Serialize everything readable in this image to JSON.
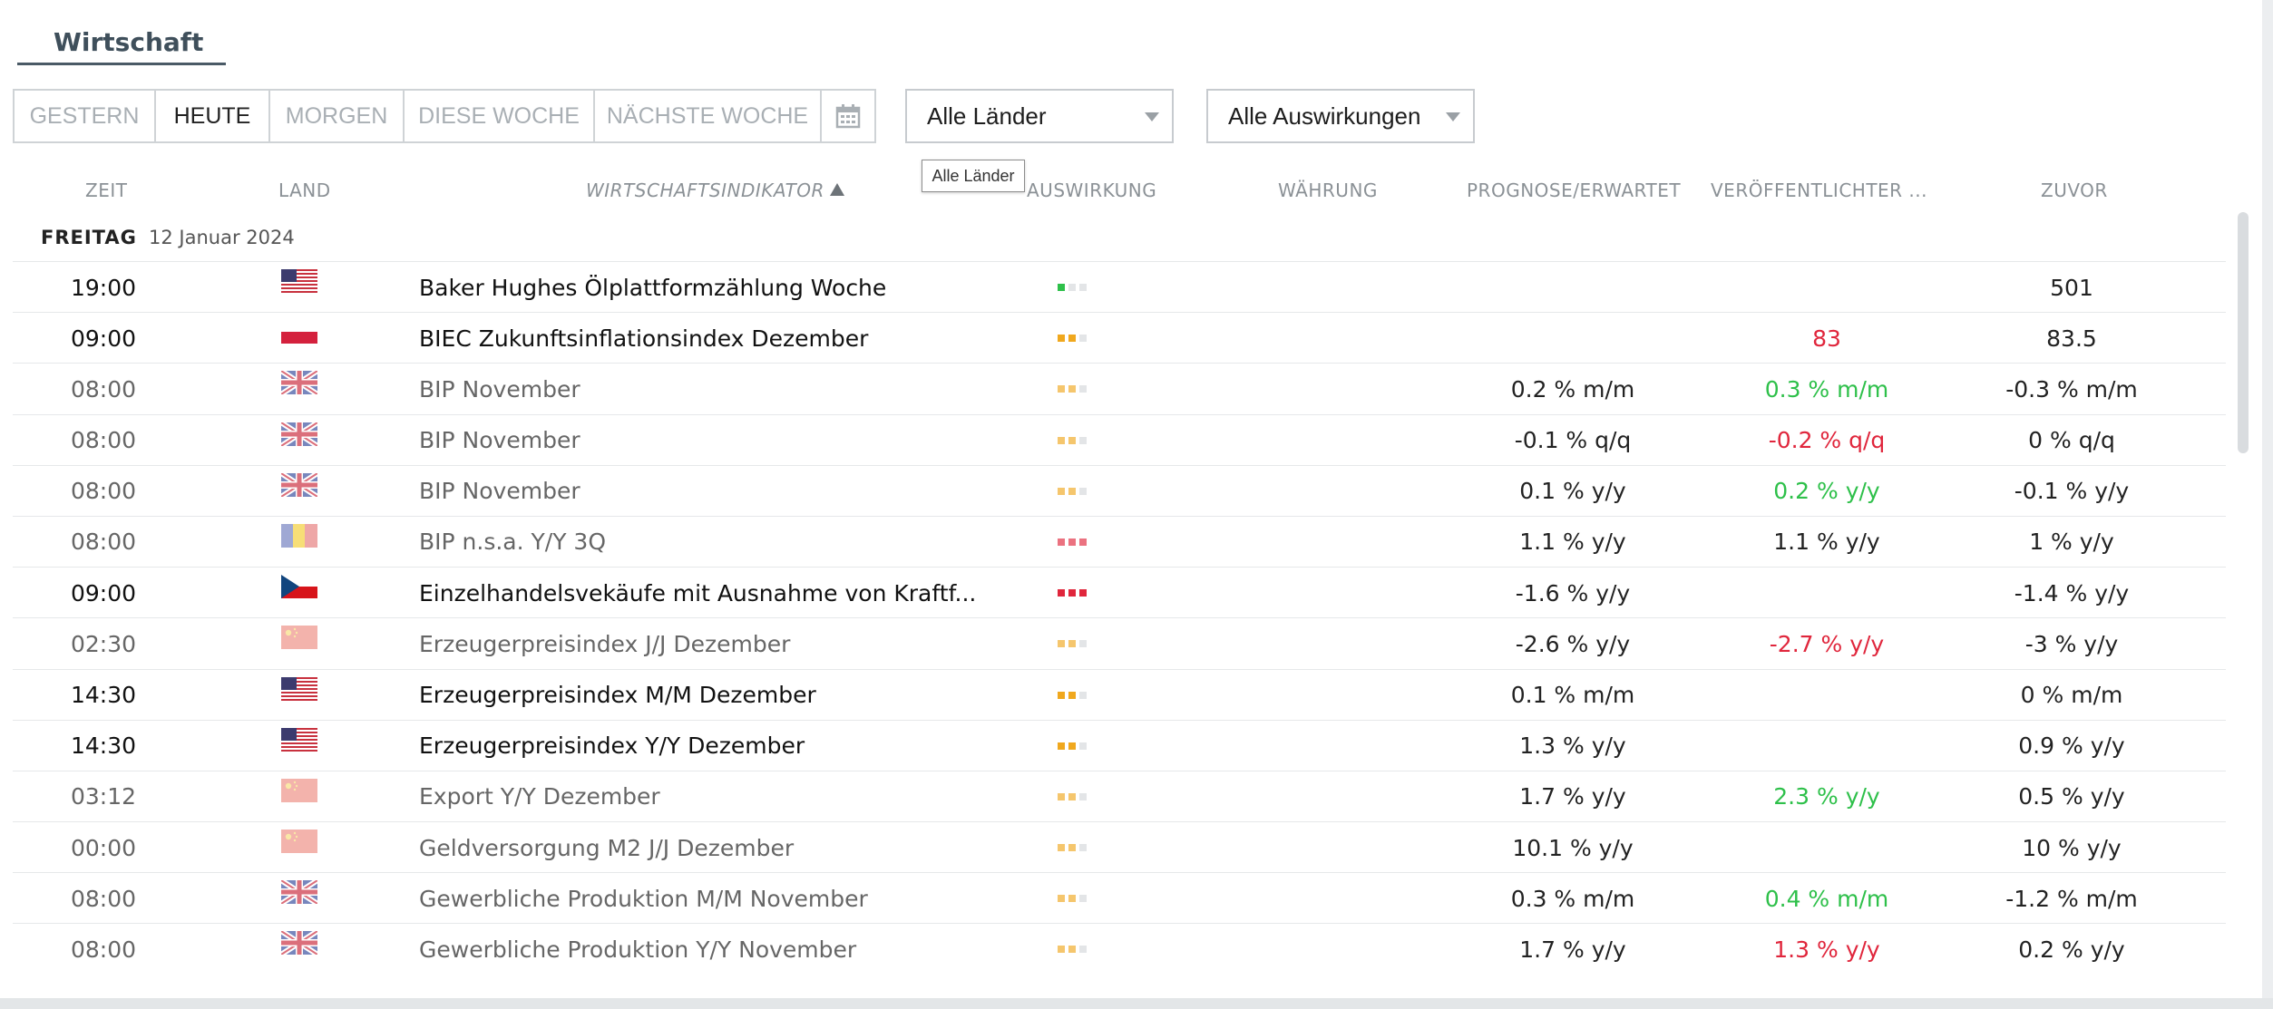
{
  "section_title": "Wirtschaft",
  "periods": [
    {
      "label": "GESTERN",
      "active": false
    },
    {
      "label": "HEUTE",
      "active": true
    },
    {
      "label": "MORGEN",
      "active": false
    },
    {
      "label": "DIESE WOCHE",
      "active": false
    },
    {
      "label": "NÄCHSTE WOCHE",
      "active": false
    }
  ],
  "calendar_icon": "calendar-icon",
  "country_select": {
    "value": "Alle Länder"
  },
  "impact_select": {
    "value": "Alle Auswirkungen"
  },
  "tooltip": "Alle Länder",
  "columns": {
    "time": "ZEIT",
    "country": "LAND",
    "indicator": "WIRTSCHAFTSINDIKATOR",
    "impact": "AUSWIRKUNG",
    "currency": "WÄHRUNG",
    "forecast": "PROGNOSE/ERWARTET",
    "actual": "VERÖFFENTLICHTER ...",
    "previous": "ZUVOR"
  },
  "day": {
    "name": "FREITAG",
    "date": "12 Januar 2024"
  },
  "colors": {
    "positive": "#2ec04a",
    "negative": "#e0263c",
    "impact_low": "#2ec04a",
    "impact_medium": "#f0a81e",
    "impact_high": "#e0263c",
    "impact_off": "#e3e5e7"
  },
  "events": [
    {
      "time": "19:00",
      "flag": "us",
      "indicator": "Baker Hughes Ölplattformzählung Woche",
      "impact": 1,
      "impact_level": "low",
      "forecast": "",
      "actual": "",
      "actual_status": "neutral",
      "previous": "501",
      "important": true
    },
    {
      "time": "09:00",
      "flag": "pl",
      "indicator": "BIEC Zukunftsinflationsindex Dezember",
      "impact": 2,
      "impact_level": "medium",
      "forecast": "",
      "actual": "83",
      "actual_status": "negative",
      "previous": "83.5",
      "important": true
    },
    {
      "time": "08:00",
      "flag": "gb",
      "indicator": "BIP November",
      "impact": 2,
      "impact_level": "medium",
      "forecast": "0.2 % m/m",
      "actual": "0.3 % m/m",
      "actual_status": "positive",
      "previous": "-0.3 % m/m",
      "important": false
    },
    {
      "time": "08:00",
      "flag": "gb",
      "indicator": "BIP November",
      "impact": 2,
      "impact_level": "medium",
      "forecast": "-0.1 % q/q",
      "actual": "-0.2 % q/q",
      "actual_status": "negative",
      "previous": "0 % q/q",
      "important": false
    },
    {
      "time": "08:00",
      "flag": "gb",
      "indicator": "BIP November",
      "impact": 2,
      "impact_level": "medium",
      "forecast": "0.1 % y/y",
      "actual": "0.2 % y/y",
      "actual_status": "positive",
      "previous": "-0.1 % y/y",
      "important": false
    },
    {
      "time": "08:00",
      "flag": "ro",
      "indicator": "BIP n.s.a. Y/Y 3Q",
      "impact": 3,
      "impact_level": "high",
      "forecast": "1.1 % y/y",
      "actual": "1.1 % y/y",
      "actual_status": "neutral",
      "previous": "1 % y/y",
      "important": false
    },
    {
      "time": "09:00",
      "flag": "cz",
      "indicator": "Einzelhandelsvekäufe mit Ausnahme von Kraftf...",
      "impact": 3,
      "impact_level": "high",
      "forecast": "-1.6 % y/y",
      "actual": "",
      "actual_status": "neutral",
      "previous": "-1.4 % y/y",
      "important": true
    },
    {
      "time": "02:30",
      "flag": "cn",
      "indicator": "Erzeugerpreisindex J/J Dezember",
      "impact": 2,
      "impact_level": "medium",
      "forecast": "-2.6 % y/y",
      "actual": "-2.7 % y/y",
      "actual_status": "negative",
      "previous": "-3 % y/y",
      "important": false
    },
    {
      "time": "14:30",
      "flag": "us",
      "indicator": "Erzeugerpreisindex M/M Dezember",
      "impact": 2,
      "impact_level": "medium",
      "forecast": "0.1 % m/m",
      "actual": "",
      "actual_status": "neutral",
      "previous": "0 % m/m",
      "important": true
    },
    {
      "time": "14:30",
      "flag": "us",
      "indicator": "Erzeugerpreisindex Y/Y Dezember",
      "impact": 2,
      "impact_level": "medium",
      "forecast": "1.3 % y/y",
      "actual": "",
      "actual_status": "neutral",
      "previous": "0.9 % y/y",
      "important": true
    },
    {
      "time": "03:12",
      "flag": "cn",
      "indicator": "Export Y/Y Dezember",
      "impact": 2,
      "impact_level": "medium",
      "forecast": "1.7 % y/y",
      "actual": "2.3 % y/y",
      "actual_status": "positive",
      "previous": "0.5 % y/y",
      "important": false
    },
    {
      "time": "00:00",
      "flag": "cn",
      "indicator": "Geldversorgung M2 J/J Dezember",
      "impact": 2,
      "impact_level": "medium",
      "forecast": "10.1 % y/y",
      "actual": "",
      "actual_status": "neutral",
      "previous": "10 % y/y",
      "important": false
    },
    {
      "time": "08:00",
      "flag": "gb",
      "indicator": "Gewerbliche Produktion M/M November",
      "impact": 2,
      "impact_level": "medium",
      "forecast": "0.3 % m/m",
      "actual": "0.4 % m/m",
      "actual_status": "positive",
      "previous": "-1.2 % m/m",
      "important": false
    },
    {
      "time": "08:00",
      "flag": "gb",
      "indicator": "Gewerbliche Produktion Y/Y November",
      "impact": 2,
      "impact_level": "medium",
      "forecast": "1.7 % y/y",
      "actual": "1.3 % y/y",
      "actual_status": "negative",
      "previous": "0.2 % y/y",
      "important": false
    }
  ]
}
